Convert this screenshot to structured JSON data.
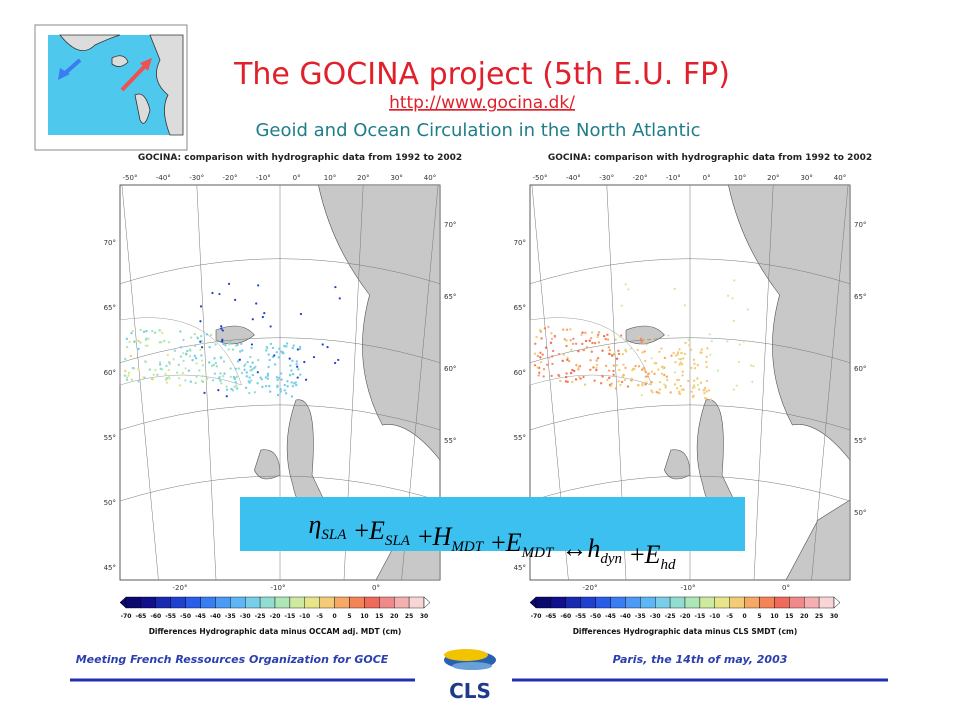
{
  "header": {
    "title": "The GOCINA project (5th E.U. FP)",
    "link": "http://www.gocina.dk/",
    "subtitle": "Geoid and Ocean Circulation in the North Atlantic"
  },
  "maps": [
    {
      "title": "GOCINA: comparison with hydrographic data from 1992 to 2002",
      "caption": "Differences Hydrographic data minus OCCAM adj. MDT (cm)"
    },
    {
      "title": "GOCINA: comparison with hydrographic data from 1992 to 2002",
      "caption": "Differences Hydrographic data minus CLS SMDT (cm)"
    }
  ],
  "map_axes": {
    "top": [
      "-50°",
      "-40°",
      "-30°",
      "-20°",
      "-10°",
      "0°",
      "10°",
      "20°",
      "30°",
      "40°"
    ],
    "left": [
      "70°",
      "65°",
      "60°",
      "55°",
      "50°",
      "45°"
    ],
    "right": [
      "70°",
      "65°",
      "60°",
      "55°",
      "50°"
    ],
    "bottom": [
      "-20°",
      "-10°",
      "0°"
    ]
  },
  "colorbar": {
    "labels": [
      "-70",
      "-65",
      "-60",
      "-55",
      "-50",
      "-45",
      "-40",
      "-35",
      "-30",
      "-25",
      "-20",
      "-15",
      "-10",
      "-5",
      "0",
      "5",
      "10",
      "15",
      "20",
      "25",
      "30"
    ],
    "colors": [
      "#0a0a6e",
      "#10108c",
      "#1a2ab0",
      "#2040d0",
      "#2a5ee8",
      "#3a7cf2",
      "#4c9af6",
      "#5eb6f6",
      "#78cde8",
      "#92dcd2",
      "#aee6b8",
      "#cdeaa0",
      "#e8e48a",
      "#f4cc78",
      "#f6a866",
      "#f48458",
      "#ef6a5a",
      "#f08a8a",
      "#f4b0b0",
      "#f9d6d6"
    ]
  },
  "equation": [
    {
      "base": "η",
      "sub": "SLA"
    },
    {
      "op": "+"
    },
    {
      "base": "E",
      "sub": "SLA"
    },
    {
      "op": "+"
    },
    {
      "base": "H",
      "sub": "MDT"
    },
    {
      "op": "+"
    },
    {
      "base": "E",
      "sub": "MDT"
    },
    {
      "op": "↔"
    },
    {
      "base": "h",
      "sub": "dyn"
    },
    {
      "op": "+"
    },
    {
      "base": "E",
      "sub": "hd"
    }
  ],
  "footer": {
    "left": "Meeting French Ressources Organization for GOCE",
    "right": "Paris, the 14th of may, 2003",
    "logo": "CLS"
  }
}
